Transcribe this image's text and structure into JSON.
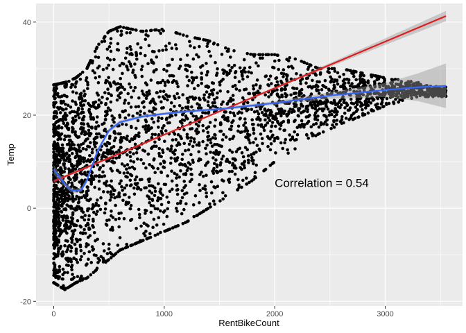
{
  "chart_data": {
    "type": "scatter",
    "title": "",
    "xlabel": "RentBikeCount",
    "ylabel": "Temp",
    "xlim": [
      -160,
      3700
    ],
    "ylim": [
      -21,
      44
    ],
    "x_ticks": [
      0,
      1000,
      2000,
      3000
    ],
    "y_ticks": [
      -20,
      0,
      20,
      40
    ],
    "x_tick_labels": [
      "0",
      "1000",
      "2000",
      "3000"
    ],
    "y_tick_labels": [
      "-20",
      "0",
      "20",
      "40"
    ],
    "grid": true,
    "legend": "none",
    "annotation": {
      "text": "Correlation = 0.54",
      "x": 2000,
      "y": 4.6
    },
    "colors": {
      "points": "#000000",
      "linear_fit": "#e41a1c",
      "smooth_fit": "#3366ff",
      "confidence_band": "#999999",
      "panel_background": "#ebebeb",
      "grid": "#ffffff"
    },
    "point_cloud_envelope": [
      {
        "x": 0,
        "ymin": -16,
        "ymax": 26.5
      },
      {
        "x": 100,
        "ymin": -17.5,
        "ymax": 27
      },
      {
        "x": 200,
        "ymin": -16,
        "ymax": 28
      },
      {
        "x": 300,
        "ymin": -15,
        "ymax": 30
      },
      {
        "x": 400,
        "ymin": -13,
        "ymax": 35
      },
      {
        "x": 500,
        "ymin": -11,
        "ymax": 38
      },
      {
        "x": 600,
        "ymin": -9,
        "ymax": 39
      },
      {
        "x": 800,
        "ymin": -7,
        "ymax": 38
      },
      {
        "x": 1000,
        "ymin": -5,
        "ymax": 38.5
      },
      {
        "x": 1200,
        "ymin": -3,
        "ymax": 37
      },
      {
        "x": 1400,
        "ymin": 0,
        "ymax": 36
      },
      {
        "x": 1600,
        "ymin": 3,
        "ymax": 34
      },
      {
        "x": 1800,
        "ymin": 6,
        "ymax": 33
      },
      {
        "x": 2000,
        "ymin": 10,
        "ymax": 33
      },
      {
        "x": 2200,
        "ymin": 13,
        "ymax": 32
      },
      {
        "x": 2400,
        "ymin": 16,
        "ymax": 30
      },
      {
        "x": 2600,
        "ymin": 18,
        "ymax": 30
      },
      {
        "x": 2800,
        "ymin": 20,
        "ymax": 29
      },
      {
        "x": 3000,
        "ymin": 22,
        "ymax": 28
      },
      {
        "x": 3300,
        "ymin": 24,
        "ymax": 27
      },
      {
        "x": 3550,
        "ymin": 24,
        "ymax": 26
      }
    ],
    "series": [
      {
        "fit": "linear",
        "x": [
          0,
          500,
          1000,
          1500,
          2000,
          2500,
          3000,
          3550
        ],
        "y": [
          5.8,
          10.8,
          15.8,
          20.8,
          25.8,
          30.8,
          35.8,
          41.3
        ],
        "band_halfwidth": [
          0.3,
          0.2,
          0.15,
          0.15,
          0.2,
          0.4,
          0.7,
          1.1
        ]
      },
      {
        "fit": "smooth",
        "x": [
          0,
          100,
          150,
          200,
          250,
          300,
          400,
          500,
          600,
          800,
          1000,
          1200,
          1500,
          2000,
          2500,
          3000,
          3300,
          3550
        ],
        "y": [
          8.3,
          5.2,
          4.0,
          3.7,
          4.0,
          6.0,
          12.5,
          16.7,
          18.5,
          19.7,
          20.3,
          20.8,
          21.3,
          22.6,
          24.2,
          25.4,
          26.0,
          26.3
        ],
        "band_halfwidth": [
          1.0,
          0.6,
          0.5,
          0.5,
          0.5,
          0.5,
          0.5,
          0.5,
          0.4,
          0.3,
          0.3,
          0.3,
          0.3,
          0.4,
          0.7,
          1.5,
          3.0,
          4.8
        ]
      }
    ]
  }
}
